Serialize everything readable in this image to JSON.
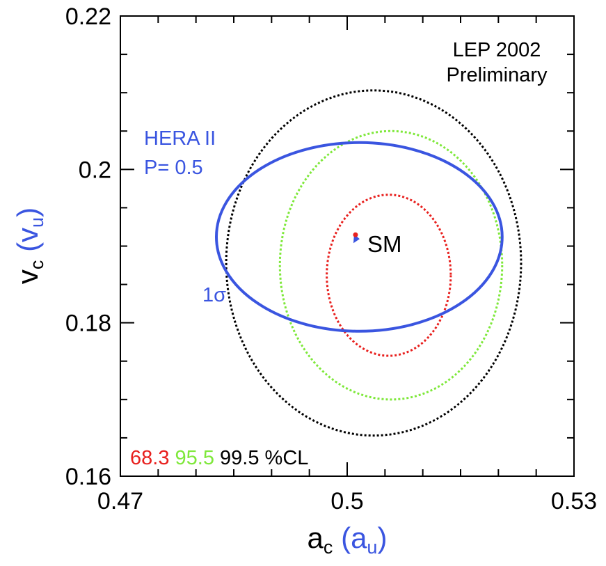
{
  "chart_data": {
    "type": "contour",
    "title": "",
    "annotation": {
      "line1": "LEP 2002",
      "line2": "Preliminary"
    },
    "xlabel": {
      "main": "a",
      "sub": "c",
      "paren_main": "a",
      "paren_sub": "u"
    },
    "ylabel": {
      "main": "v",
      "sub": "c",
      "paren_main": "v",
      "paren_sub": "u"
    },
    "xlim": [
      0.47,
      0.53
    ],
    "ylim": [
      0.16,
      0.22
    ],
    "x_ticks": [
      {
        "value": 0.47,
        "label": "0.47"
      },
      {
        "value": 0.5,
        "label": "0.5"
      },
      {
        "value": 0.53,
        "label": "0.53"
      }
    ],
    "y_ticks": [
      {
        "value": 0.16,
        "label": "0.16"
      },
      {
        "value": 0.18,
        "label": "0.18"
      },
      {
        "value": 0.2,
        "label": "0.2"
      },
      {
        "value": 0.22,
        "label": "0.22"
      }
    ],
    "x_minor_step": 0.005,
    "y_minor_step": 0.005,
    "contours": [
      {
        "name": "68.3",
        "cl": 68.3,
        "color": "#e8201e",
        "style": "dotted",
        "center": [
          0.5055,
          0.1862
        ],
        "semi_axes": [
          0.0082,
          0.0105
        ],
        "points": []
      },
      {
        "name": "95.5",
        "cl": 95.5,
        "color": "#7ee83a",
        "style": "dotted",
        "center": [
          0.5058,
          0.1875
        ],
        "semi_axes": [
          0.0147,
          0.0175
        ],
        "points": []
      },
      {
        "name": "99.5",
        "cl": 99.5,
        "color": "#000000",
        "style": "dotted",
        "center": [
          0.5035,
          0.1878
        ],
        "semi_axes": [
          0.0195,
          0.0225
        ],
        "points": []
      }
    ],
    "hera": {
      "label_line1": "HERA II",
      "label_line2": "P= 0.5",
      "sigma_label": "1σ",
      "color": "#3a55e0",
      "center": [
        0.5016,
        0.1912
      ],
      "semi_axes": [
        0.0189,
        0.0123
      ]
    },
    "sm_point": {
      "x": 0.5011,
      "y": 0.1912,
      "label": "SM",
      "color_point": "#e8201e",
      "color_arrow": "#3a55e0"
    },
    "legend": {
      "items": [
        {
          "label": "68.3",
          "color": "#e8201e"
        },
        {
          "label": "95.5",
          "color": "#7ee83a"
        },
        {
          "label": "99.5",
          "color": "#000000"
        }
      ],
      "suffix": "%CL",
      "position": "bottom-left"
    }
  }
}
